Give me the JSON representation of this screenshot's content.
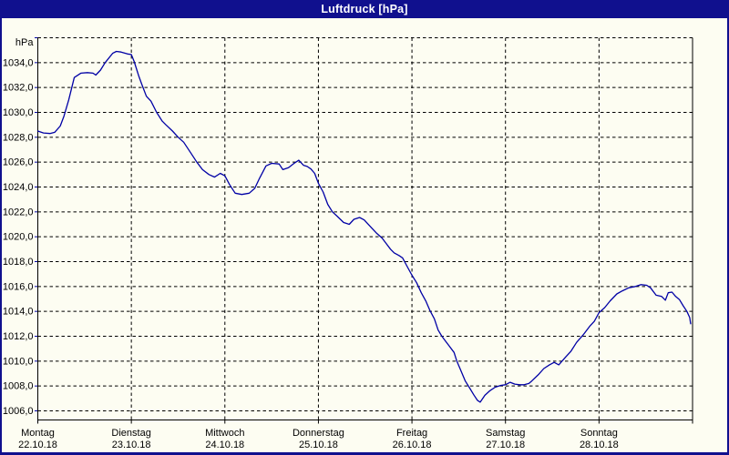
{
  "window": {
    "title": "Luftdruck [hPa]"
  },
  "colors": {
    "frame": "#10108E",
    "titlebar": "#10108E",
    "title_text": "#FFFFFF",
    "background": "#FDFDF2",
    "grid": "#000000",
    "axis": "#000000",
    "line": "#0000A5",
    "y_tick": "#0000A5"
  },
  "chart_data": {
    "type": "line",
    "title": "Luftdruck [hPa]",
    "unit_label": "hPa",
    "xlabel": "",
    "ylabel": "hPa",
    "grid": "dashed",
    "legend": "none",
    "xlim": [
      0,
      7
    ],
    "ylim": [
      1005.3,
      1036
    ],
    "y_top": 1036,
    "y_ticks": [
      1006,
      1008,
      1010,
      1012,
      1014,
      1016,
      1018,
      1020,
      1022,
      1024,
      1026,
      1028,
      1030,
      1032,
      1034
    ],
    "decimal_separator": ",",
    "days": [
      {
        "name": "Montag",
        "date": "22.10.18"
      },
      {
        "name": "Dienstag",
        "date": "23.10.18"
      },
      {
        "name": "Mittwoch",
        "date": "24.10.18"
      },
      {
        "name": "Donnerstag",
        "date": "25.10.18"
      },
      {
        "name": "Freitag",
        "date": "26.10.18"
      },
      {
        "name": "Samstag",
        "date": "27.10.18"
      },
      {
        "name": "Sonntag",
        "date": "28.10.18"
      }
    ],
    "series": [
      {
        "name": "Luftdruck",
        "unit": "hPa",
        "color": "#0000A5",
        "points": [
          [
            0.0,
            1028.5
          ],
          [
            0.06,
            1028.35
          ],
          [
            0.13,
            1028.3
          ],
          [
            0.18,
            1028.4
          ],
          [
            0.24,
            1028.9
          ],
          [
            0.28,
            1029.7
          ],
          [
            0.33,
            1031.0
          ],
          [
            0.39,
            1032.8
          ],
          [
            0.46,
            1033.15
          ],
          [
            0.53,
            1033.2
          ],
          [
            0.59,
            1033.15
          ],
          [
            0.62,
            1033.0
          ],
          [
            0.67,
            1033.4
          ],
          [
            0.72,
            1034.0
          ],
          [
            0.8,
            1034.75
          ],
          [
            0.84,
            1034.9
          ],
          [
            0.89,
            1034.85
          ],
          [
            0.96,
            1034.7
          ],
          [
            1.0,
            1034.65
          ],
          [
            1.03,
            1034.1
          ],
          [
            1.08,
            1032.9
          ],
          [
            1.11,
            1032.3
          ],
          [
            1.16,
            1031.3
          ],
          [
            1.21,
            1030.9
          ],
          [
            1.27,
            1030.0
          ],
          [
            1.33,
            1029.3
          ],
          [
            1.37,
            1029.0
          ],
          [
            1.44,
            1028.5
          ],
          [
            1.5,
            1028.0
          ],
          [
            1.56,
            1027.6
          ],
          [
            1.63,
            1026.8
          ],
          [
            1.7,
            1026.0
          ],
          [
            1.76,
            1025.4
          ],
          [
            1.83,
            1025.0
          ],
          [
            1.89,
            1024.8
          ],
          [
            1.95,
            1025.1
          ],
          [
            2.0,
            1024.9
          ],
          [
            2.05,
            1024.2
          ],
          [
            2.11,
            1023.5
          ],
          [
            2.18,
            1023.4
          ],
          [
            2.26,
            1023.5
          ],
          [
            2.32,
            1023.9
          ],
          [
            2.37,
            1024.7
          ],
          [
            2.44,
            1025.7
          ],
          [
            2.5,
            1025.9
          ],
          [
            2.58,
            1025.85
          ],
          [
            2.62,
            1025.4
          ],
          [
            2.68,
            1025.55
          ],
          [
            2.74,
            1025.9
          ],
          [
            2.79,
            1026.15
          ],
          [
            2.84,
            1025.75
          ],
          [
            2.88,
            1025.65
          ],
          [
            2.92,
            1025.45
          ],
          [
            2.96,
            1025.1
          ],
          [
            3.0,
            1024.3
          ],
          [
            3.05,
            1023.6
          ],
          [
            3.1,
            1022.6
          ],
          [
            3.15,
            1022.0
          ],
          [
            3.2,
            1021.65
          ],
          [
            3.27,
            1021.15
          ],
          [
            3.33,
            1021.0
          ],
          [
            3.38,
            1021.4
          ],
          [
            3.44,
            1021.55
          ],
          [
            3.49,
            1021.35
          ],
          [
            3.52,
            1021.1
          ],
          [
            3.57,
            1020.7
          ],
          [
            3.62,
            1020.3
          ],
          [
            3.68,
            1019.9
          ],
          [
            3.73,
            1019.4
          ],
          [
            3.77,
            1019.0
          ],
          [
            3.81,
            1018.7
          ],
          [
            3.86,
            1018.5
          ],
          [
            3.9,
            1018.3
          ],
          [
            3.95,
            1017.6
          ],
          [
            4.0,
            1016.9
          ],
          [
            4.05,
            1016.3
          ],
          [
            4.1,
            1015.5
          ],
          [
            4.15,
            1014.8
          ],
          [
            4.19,
            1014.1
          ],
          [
            4.24,
            1013.4
          ],
          [
            4.28,
            1012.5
          ],
          [
            4.32,
            1012.0
          ],
          [
            4.36,
            1011.6
          ],
          [
            4.4,
            1011.2
          ],
          [
            4.45,
            1010.7
          ],
          [
            4.48,
            1010.0
          ],
          [
            4.52,
            1009.3
          ],
          [
            4.57,
            1008.4
          ],
          [
            4.62,
            1007.8
          ],
          [
            4.66,
            1007.3
          ],
          [
            4.7,
            1006.85
          ],
          [
            4.73,
            1006.7
          ],
          [
            4.78,
            1007.25
          ],
          [
            4.83,
            1007.6
          ],
          [
            4.89,
            1007.9
          ],
          [
            4.95,
            1008.05
          ],
          [
            5.0,
            1008.1
          ],
          [
            5.05,
            1008.3
          ],
          [
            5.1,
            1008.15
          ],
          [
            5.15,
            1008.1
          ],
          [
            5.2,
            1008.1
          ],
          [
            5.25,
            1008.2
          ],
          [
            5.28,
            1008.4
          ],
          [
            5.35,
            1008.9
          ],
          [
            5.41,
            1009.4
          ],
          [
            5.47,
            1009.7
          ],
          [
            5.52,
            1009.9
          ],
          [
            5.57,
            1009.7
          ],
          [
            5.64,
            1010.3
          ],
          [
            5.7,
            1010.8
          ],
          [
            5.76,
            1011.5
          ],
          [
            5.83,
            1012.1
          ],
          [
            5.9,
            1012.8
          ],
          [
            5.95,
            1013.2
          ],
          [
            6.0,
            1013.9
          ],
          [
            6.06,
            1014.3
          ],
          [
            6.12,
            1014.85
          ],
          [
            6.19,
            1015.4
          ],
          [
            6.25,
            1015.65
          ],
          [
            6.32,
            1015.9
          ],
          [
            6.39,
            1016.0
          ],
          [
            6.45,
            1016.15
          ],
          [
            6.51,
            1016.1
          ],
          [
            6.55,
            1015.9
          ],
          [
            6.61,
            1015.3
          ],
          [
            6.67,
            1015.2
          ],
          [
            6.71,
            1014.9
          ],
          [
            6.74,
            1015.5
          ],
          [
            6.78,
            1015.55
          ],
          [
            6.82,
            1015.2
          ],
          [
            6.86,
            1014.95
          ],
          [
            6.9,
            1014.45
          ],
          [
            6.94,
            1014.0
          ],
          [
            6.97,
            1013.5
          ],
          [
            6.98,
            1013.0
          ]
        ]
      }
    ]
  }
}
